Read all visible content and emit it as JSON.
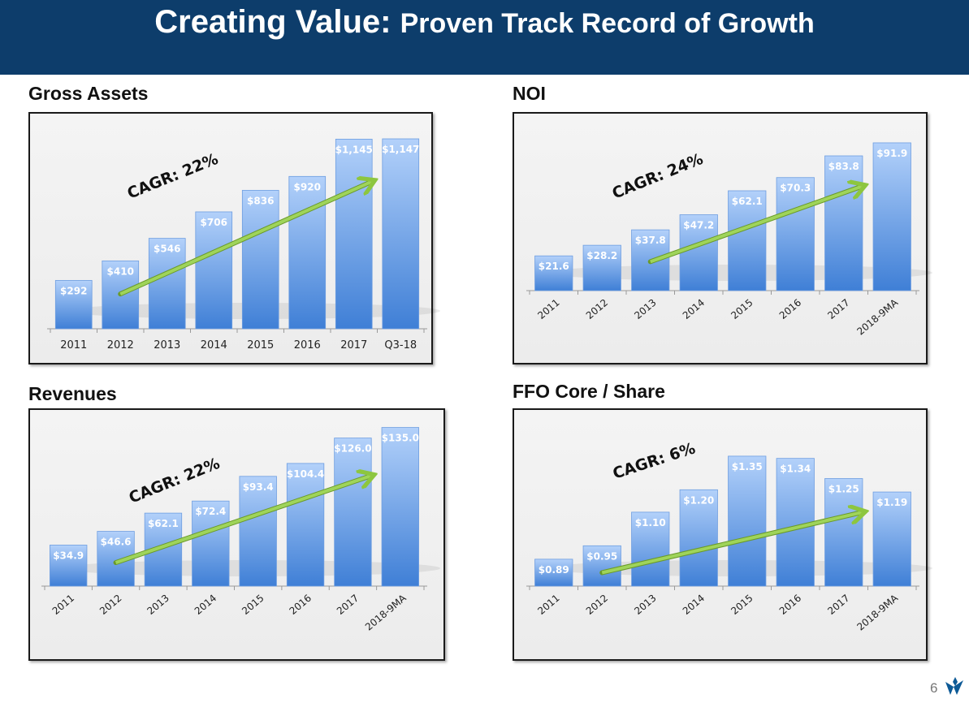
{
  "header": {
    "title_main": "Creating Value:",
    "title_rest": "Proven Track Record of Growth"
  },
  "page_number": "6",
  "colors": {
    "header": "#0d3d6b",
    "bar_top": "#b3d1fa",
    "bar_bottom": "#3f7fd6",
    "arrow": "#8dc63f"
  },
  "chart_data": [
    {
      "type": "bar",
      "title": "Gross Assets",
      "categories": [
        "2011",
        "2012",
        "2013",
        "2014",
        "2015",
        "2016",
        "2017",
        "Q3-18"
      ],
      "values": [
        292,
        410,
        546,
        706,
        836,
        920,
        1145,
        1147
      ],
      "labels": [
        "$292",
        "$410",
        "$546",
        "$706",
        "$836",
        "$920",
        "$1,145",
        "$1,147"
      ],
      "ylim": [
        0,
        1250
      ],
      "xtick_rotation": 0,
      "annotation": {
        "text": "CAGR: 22%",
        "arrow_from": [
          "2012",
          210
        ],
        "arrow_to": [
          "2017",
          890
        ]
      }
    },
    {
      "type": "bar",
      "title": "NOI",
      "categories": [
        "2011",
        "2012",
        "2013",
        "2014",
        "2015",
        "2016",
        "2017",
        "2018-9MA"
      ],
      "values": [
        21.6,
        28.2,
        37.8,
        47.2,
        62.1,
        70.3,
        83.8,
        91.9
      ],
      "labels": [
        "$21.6",
        "$28.2",
        "$37.8",
        "$47.2",
        "$62.1",
        "$70.3",
        "$83.8",
        "$91.9"
      ],
      "ylim": [
        0,
        105
      ],
      "xtick_rotation": -40,
      "annotation": {
        "text": "CAGR: 24%",
        "arrow_from": [
          "2013",
          18
        ],
        "arrow_to": [
          "2017",
          65
        ]
      }
    },
    {
      "type": "bar",
      "title": "Revenues",
      "categories": [
        "2011",
        "2012",
        "2013",
        "2014",
        "2015",
        "2016",
        "2017",
        "2018-9MA"
      ],
      "values": [
        34.9,
        46.6,
        62.1,
        72.4,
        93.4,
        104.4,
        126.0,
        135.0
      ],
      "labels": [
        "$34.9",
        "$46.6",
        "$62.1",
        "$72.4",
        "$93.4",
        "$104.4",
        "$126.0",
        "$135.0"
      ],
      "ylim": [
        0,
        143
      ],
      "xtick_rotation": -40,
      "annotation": {
        "text": "CAGR: 22%",
        "arrow_from": [
          "2012",
          20
        ],
        "arrow_to": [
          "2017",
          94
        ]
      }
    },
    {
      "type": "bar",
      "title": "FFO Core / Share",
      "categories": [
        "2011",
        "2012",
        "2013",
        "2014",
        "2015",
        "2016",
        "2017",
        "2018-9MA"
      ],
      "values": [
        0.89,
        0.95,
        1.1,
        1.2,
        1.35,
        1.34,
        1.25,
        1.19
      ],
      "labels": [
        "$0.89",
        "$0.95",
        "$1.10",
        "$1.20",
        "$1.35",
        "$1.34",
        "$1.25",
        "$1.19"
      ],
      "ylim": [
        0.77,
        1.52
      ],
      "xtick_rotation": -40,
      "annotation": {
        "text": "CAGR: 6%",
        "arrow_from": [
          "2012",
          0.83
        ],
        "arrow_to": [
          "2017",
          1.1
        ]
      }
    }
  ]
}
